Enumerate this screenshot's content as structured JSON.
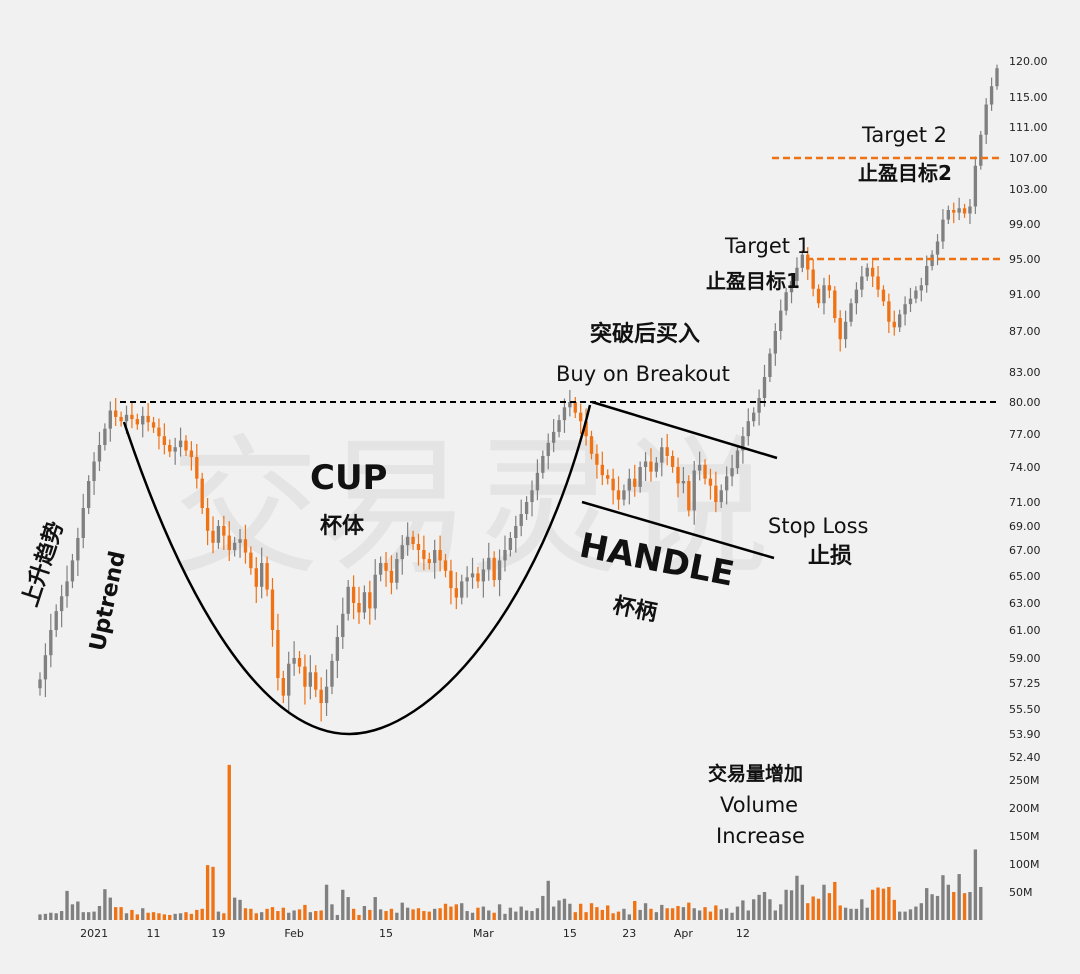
{
  "chart_data": {
    "type": "candlestick",
    "title": "",
    "price_ticks": [
      "120.00",
      "115.00",
      "111.00",
      "107.00",
      "103.00",
      "99.00",
      "95.00",
      "91.00",
      "87.00",
      "83.00",
      "80.00",
      "77.00",
      "74.00",
      "71.00",
      "69.00",
      "67.00",
      "65.00",
      "63.00",
      "61.00",
      "59.00",
      "57.25",
      "55.50",
      "53.90",
      "52.40"
    ],
    "volume_ticks": [
      "250M",
      "200M",
      "150M",
      "100M",
      "50M"
    ],
    "x_ticks": [
      "2021",
      "11",
      "19",
      "Feb",
      "15",
      "Mar",
      "15",
      "23",
      "Apr",
      "12"
    ],
    "breakout_level": 80.0,
    "target1_level": 95.0,
    "target2_level": 107.0,
    "colors": {
      "up": "#808080",
      "down": "#ef7215",
      "guide": "#ef7215",
      "line": "#000000"
    },
    "annotations": {
      "uptrend_cn": "上升趋势",
      "uptrend_en": "Uptrend",
      "cup_en": "CUP",
      "cup_cn": "杯体",
      "handle_en": "HANDLE",
      "handle_cn": "杯柄",
      "breakout_cn": "突破后买入",
      "breakout_en": "Buy on Breakout",
      "stoploss_en": "Stop Loss",
      "stoploss_cn": "止损",
      "target1_en": "Target 1",
      "target1_cn": "止盈目标1",
      "target2_en": "Target 2",
      "target2_cn": "止盈目标2",
      "volume_cn": "交易量增加",
      "volume_en1": "Volume",
      "volume_en2": "Increase"
    },
    "closes": [
      57.5,
      59.2,
      61.0,
      62.4,
      63.5,
      64.6,
      66.2,
      68.0,
      70.5,
      72.8,
      74.5,
      76.0,
      77.5,
      79.2,
      78.6,
      78.2,
      78.8,
      78.4,
      77.9,
      78.7,
      78.1,
      77.6,
      76.8,
      76.0,
      75.4,
      75.8,
      76.4,
      75.5,
      74.9,
      73.0,
      70.5,
      68.6,
      67.6,
      69.0,
      68.2,
      67.0,
      67.6,
      67.9,
      66.8,
      65.6,
      64.2,
      66.0,
      64.0,
      61.0,
      57.6,
      56.4,
      58.6,
      59.0,
      58.4,
      57.0,
      58.0,
      56.8,
      55.9,
      57.0,
      58.8,
      60.5,
      62.2,
      64.2,
      63.0,
      62.3,
      63.8,
      62.6,
      65.1,
      66.0,
      65.4,
      64.5,
      66.3,
      67.4,
      68.1,
      67.5,
      67.0,
      66.3,
      66.0,
      67.0,
      66.2,
      65.4,
      64.1,
      63.4,
      64.6,
      64.9,
      65.2,
      64.6,
      65.5,
      66.4,
      64.7,
      66.2,
      67.0,
      68.0,
      69.0,
      70.0,
      71.0,
      72.0,
      73.5,
      75.0,
      76.2,
      77.2,
      78.3,
      79.5,
      80.0,
      79.0,
      78.2,
      76.8,
      75.2,
      74.2,
      73.3,
      73.0,
      72.0,
      71.2,
      72.0,
      73.0,
      72.3,
      74.0,
      74.5,
      73.6,
      74.4,
      75.8,
      75.0,
      74.0,
      72.6,
      72.8,
      70.3,
      73.7,
      74.2,
      73.0,
      72.4,
      71.0,
      72.0,
      73.2,
      73.9,
      75.5,
      76.8,
      78.2,
      79.0,
      80.4,
      82.5,
      84.8,
      87.0,
      89.2,
      91.2,
      92.5,
      94.0,
      95.5,
      93.8,
      91.6,
      90.0,
      92.0,
      91.4,
      88.4,
      86.2,
      88.0,
      90.0,
      91.5,
      93.0,
      94.0,
      93.0,
      91.5,
      90.2,
      88.0,
      87.4,
      88.8,
      89.9,
      90.5,
      91.4,
      92.0,
      94.2,
      95.5,
      97.0,
      99.5,
      100.6,
      100.3,
      100.8,
      100.2,
      101.0,
      106.0,
      110.0,
      114.0,
      116.5,
      119.0
    ],
    "volumes_M": [
      10,
      11,
      13,
      12,
      16,
      52,
      28,
      33,
      14,
      14,
      15,
      25,
      55,
      40,
      23,
      23,
      12,
      18,
      10,
      21,
      13,
      14,
      12,
      10,
      9,
      11,
      12,
      14,
      11,
      18,
      20,
      98,
      95,
      15,
      12,
      277,
      40,
      36,
      21,
      20,
      12,
      14,
      20,
      23,
      16,
      22,
      13,
      17,
      19,
      27,
      14,
      16,
      17,
      63,
      28,
      9,
      54,
      41,
      20,
      9,
      25,
      18,
      41,
      19,
      16,
      20,
      13,
      31,
      22,
      19,
      21,
      16,
      15,
      20,
      21,
      29,
      24,
      28,
      30,
      16,
      13,
      22,
      24,
      17,
      13,
      28,
      11,
      22,
      15,
      24,
      17,
      16,
      21,
      43,
      70,
      24,
      35,
      38,
      29,
      14,
      29,
      14,
      30,
      23,
      18,
      26,
      12,
      15,
      20,
      10,
      34,
      18,
      30,
      20,
      14,
      27,
      21,
      21,
      25,
      23,
      31,
      21,
      17,
      23,
      15,
      26,
      19,
      21,
      13,
      24,
      35,
      17,
      37,
      45,
      50,
      37,
      17,
      28,
      54,
      53,
      79,
      63,
      30,
      42,
      38,
      63,
      48,
      68,
      26,
      22,
      20,
      20,
      37,
      22,
      54,
      58,
      56,
      59,
      36,
      15,
      15,
      19,
      24,
      30,
      57,
      46,
      43,
      80,
      63,
      50,
      82,
      48,
      50,
      126,
      59
    ]
  }
}
